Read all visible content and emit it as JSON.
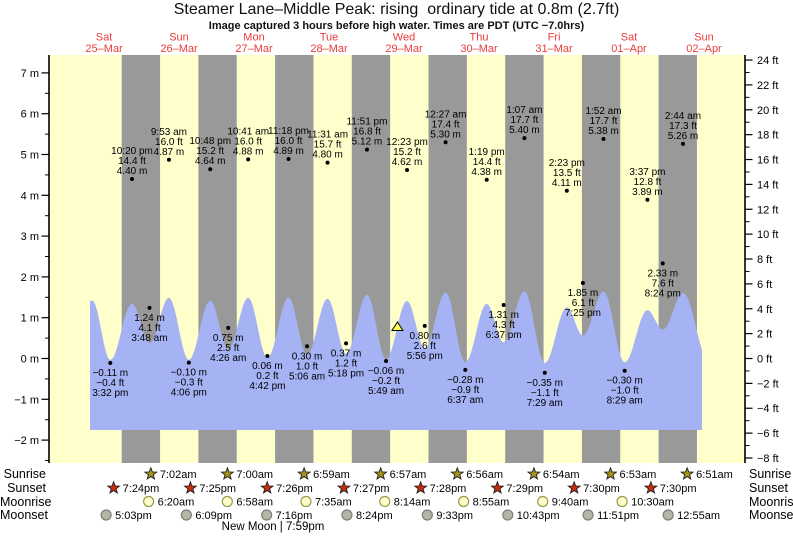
{
  "chart_data": {
    "type": "area",
    "title": "Steamer Lane–Middle Peak: rising  ordinary tide at 0.8m (2.7ft)",
    "subtitle": "Image captured 3 hours before high water. Times are PDT (UTC −7.0hrs)",
    "x_axis": {
      "days": [
        {
          "name": "Sat",
          "date": "25–Mar"
        },
        {
          "name": "Sun",
          "date": "26–Mar"
        },
        {
          "name": "Mon",
          "date": "27–Mar"
        },
        {
          "name": "Tue",
          "date": "28–Mar"
        },
        {
          "name": "Wed",
          "date": "29–Mar"
        },
        {
          "name": "Thu",
          "date": "30–Mar"
        },
        {
          "name": "Fri",
          "date": "31–Mar"
        },
        {
          "name": "Sat",
          "date": "01–Apr"
        },
        {
          "name": "Sun",
          "date": "02–Apr"
        }
      ]
    },
    "y_left": {
      "unit": "m",
      "ticks": [
        [
          7,
          "7 m"
        ],
        [
          6,
          "6 m"
        ],
        [
          5,
          "5 m"
        ],
        [
          4,
          "4 m"
        ],
        [
          3,
          "3 m"
        ],
        [
          2,
          "2 m"
        ],
        [
          1,
          "1 m"
        ],
        [
          0,
          "0 m"
        ],
        [
          -1,
          "−1 m"
        ],
        [
          -2,
          "−2 m"
        ]
      ]
    },
    "y_right": {
      "unit": "ft",
      "ticks": [
        [
          24,
          "24 ft"
        ],
        [
          22,
          "22 ft"
        ],
        [
          20,
          "20 ft"
        ],
        [
          18,
          "18 ft"
        ],
        [
          16,
          "16 ft"
        ],
        [
          14,
          "14 ft"
        ],
        [
          12,
          "12 ft"
        ],
        [
          10,
          "10 ft"
        ],
        [
          8,
          "8 ft"
        ],
        [
          6,
          "6 ft"
        ],
        [
          4,
          "4 ft"
        ],
        [
          2,
          "2 ft"
        ],
        [
          0,
          "0 ft"
        ],
        [
          -2,
          "−2 ft"
        ],
        [
          -4,
          "−4 ft"
        ],
        [
          -6,
          "−6 ft"
        ],
        [
          -8,
          "−8 ft"
        ]
      ]
    },
    "high_tides": [
      {
        "day": 0,
        "time": "10:20 pm",
        "ft": "14.4 ft",
        "m": "4.40 m",
        "value": 4.4
      },
      {
        "day": 1,
        "time": "9:53 am",
        "ft": "16.0 ft",
        "m": "4.87 m",
        "value": 4.87
      },
      {
        "day": 1,
        "time": "10:48 pm",
        "ft": "15.2 ft",
        "m": "4.64 m",
        "value": 4.64
      },
      {
        "day": 2,
        "time": "10:41 am",
        "ft": "16.0 ft",
        "m": "4.88 m",
        "value": 4.88
      },
      {
        "day": 2,
        "time": "11:18 pm",
        "ft": "16.0 ft",
        "m": "4.89 m",
        "value": 4.89
      },
      {
        "day": 3,
        "time": "11:31 am",
        "ft": "15.7 ft",
        "m": "4.80 m",
        "value": 4.8
      },
      {
        "day": 3,
        "time": "11:51 pm",
        "ft": "16.8 ft",
        "m": "5.12 m",
        "value": 5.12
      },
      {
        "day": 4,
        "time": "12:23 pm",
        "ft": "15.2 ft",
        "m": "4.62 m",
        "value": 4.62
      },
      {
        "day": 5,
        "time": "12:27 am",
        "ft": "17.4 ft",
        "m": "5.30 m",
        "value": 5.3
      },
      {
        "day": 5,
        "time": "1:19 pm",
        "ft": "14.4 ft",
        "m": "4.38 m",
        "value": 4.38
      },
      {
        "day": 6,
        "time": "1:07 am",
        "ft": "17.7 ft",
        "m": "5.40 m",
        "value": 5.4
      },
      {
        "day": 6,
        "time": "2:23 pm",
        "ft": "13.5 ft",
        "m": "4.11 m",
        "value": 4.11
      },
      {
        "day": 7,
        "time": "1:52 am",
        "ft": "17.7 ft",
        "m": "5.38 m",
        "value": 5.38
      },
      {
        "day": 7,
        "time": "3:37 pm",
        "ft": "12.8 ft",
        "m": "3.89 m",
        "value": 3.89
      },
      {
        "day": 8,
        "time": "2:44 am",
        "ft": "17.3 ft",
        "m": "5.26 m",
        "value": 5.26
      }
    ],
    "low_tides": [
      {
        "day": 0,
        "time": "3:32 pm",
        "m": "−0.11 m",
        "ft": "−0.4 ft",
        "value": -0.11
      },
      {
        "day": 1,
        "time": "3:48 am",
        "m": "1.24 m",
        "ft": "4.1 ft",
        "value": 1.24
      },
      {
        "day": 1,
        "time": "4:06 pm",
        "m": "−0.10 m",
        "ft": "−0.3 ft",
        "value": -0.1
      },
      {
        "day": 2,
        "time": "4:26 am",
        "m": "0.75 m",
        "ft": "2.5 ft",
        "value": 0.75
      },
      {
        "day": 2,
        "time": "4:42 pm",
        "m": "0.06 m",
        "ft": "0.2 ft",
        "value": 0.06
      },
      {
        "day": 3,
        "time": "5:06 am",
        "m": "0.30 m",
        "ft": "1.0 ft",
        "value": 0.3
      },
      {
        "day": 3,
        "time": "5:18 pm",
        "m": "0.37 m",
        "ft": "1.2 ft",
        "value": 0.37
      },
      {
        "day": 4,
        "time": "5:49 am",
        "m": "−0.06 m",
        "ft": "−0.2 ft",
        "value": -0.06
      },
      {
        "day": 4,
        "time": "5:56 pm",
        "m": "0.80 m",
        "ft": "2.6 ft",
        "value": 0.8
      },
      {
        "day": 5,
        "time": "6:37 am",
        "m": "−0.28 m",
        "ft": "−0.9 ft",
        "value": -0.28
      },
      {
        "day": 5,
        "time": "6:37 pm",
        "m": "1.31 m",
        "ft": "4.3 ft",
        "value": 1.31
      },
      {
        "day": 6,
        "time": "7:29 am",
        "m": "−0.35 m",
        "ft": "−1.1 ft",
        "value": -0.35
      },
      {
        "day": 6,
        "time": "7:25 pm",
        "m": "1.85 m",
        "ft": "6.1 ft",
        "value": 1.85
      },
      {
        "day": 7,
        "time": "8:29 am",
        "m": "−0.30 m",
        "ft": "−1.0 ft",
        "value": -0.3
      },
      {
        "day": 7,
        "time": "8:24 pm",
        "m": "2.33 m",
        "ft": "7.6 ft",
        "value": 2.33
      }
    ],
    "capture_marker": {
      "day": 4,
      "time": "9:23 am",
      "symbol": "triangle"
    },
    "sun_moon": [
      {
        "label": "Sunrise",
        "icon": "sunrise-star",
        "entries": [
          {
            "day": 1,
            "time": "7:02am"
          },
          {
            "day": 2,
            "time": "7:00am"
          },
          {
            "day": 3,
            "time": "6:59am"
          },
          {
            "day": 4,
            "time": "6:57am"
          },
          {
            "day": 5,
            "time": "6:56am"
          },
          {
            "day": 6,
            "time": "6:54am"
          },
          {
            "day": 7,
            "time": "6:53am"
          },
          {
            "day": 8,
            "time": "6:51am"
          }
        ]
      },
      {
        "label": "Sunset",
        "icon": "sunset-star",
        "entries": [
          {
            "day": 0,
            "time": "7:24pm"
          },
          {
            "day": 1,
            "time": "7:25pm"
          },
          {
            "day": 2,
            "time": "7:26pm"
          },
          {
            "day": 3,
            "time": "7:27pm"
          },
          {
            "day": 4,
            "time": "7:28pm"
          },
          {
            "day": 5,
            "time": "7:29pm"
          },
          {
            "day": 6,
            "time": "7:30pm"
          },
          {
            "day": 7,
            "time": "7:30pm"
          }
        ]
      },
      {
        "label": "Moonrise",
        "icon": "moonrise-circle",
        "entries": [
          {
            "day": 1,
            "time": "6:20am"
          },
          {
            "day": 2,
            "time": "6:58am"
          },
          {
            "day": 3,
            "time": "7:35am"
          },
          {
            "day": 4,
            "time": "8:14am"
          },
          {
            "day": 5,
            "time": "8:55am"
          },
          {
            "day": 6,
            "time": "9:40am"
          },
          {
            "day": 7,
            "time": "10:30am"
          }
        ]
      },
      {
        "label": "Moonset",
        "icon": "moonset-circle",
        "entries": [
          {
            "day": 0,
            "time": "5:03pm"
          },
          {
            "day": 1,
            "time": "6:09pm"
          },
          {
            "day": 2,
            "time": "7:16pm"
          },
          {
            "day": 3,
            "time": "8:24pm"
          },
          {
            "day": 4,
            "time": "9:33pm"
          },
          {
            "day": 5,
            "time": "10:43pm"
          },
          {
            "day": 6,
            "time": "11:51pm"
          },
          {
            "day": 8,
            "time": "12:55am"
          }
        ]
      }
    ],
    "new_moon": "New Moon | 7:59pm",
    "colors": {
      "background": "#ffffff",
      "day_band": "#ffffcc",
      "night_band": "#999999",
      "tide_fill": "#a5b2f3",
      "axis": "#000000",
      "date_text": "#e93c3c",
      "label_text": "#000000",
      "sunrise_star": "#a29417",
      "sunset_star": "#cc2a0e",
      "moonrise_fill": "#ffffcc",
      "moonrise_stroke": "#99994d",
      "moonset_fill": "#b5b5a6",
      "moonset_stroke": "#7d7d7d",
      "marker_triangle": "#ffff55"
    }
  }
}
